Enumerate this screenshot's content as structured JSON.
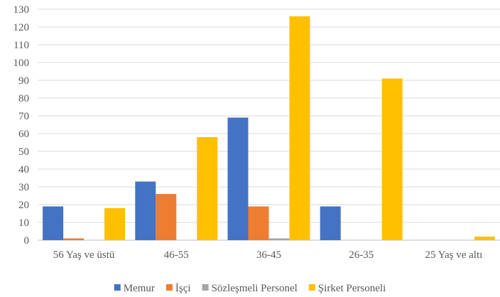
{
  "chart_data": {
    "type": "bar",
    "categories": [
      "56 Yaş ve üstü",
      "46-55",
      "36-45",
      "26-35",
      "25 Yaş ve altı"
    ],
    "series": [
      {
        "name": "Memur",
        "color": "#4472C4",
        "values": [
          19,
          33,
          69,
          19,
          0
        ]
      },
      {
        "name": "İşçi",
        "color": "#ED7D31",
        "values": [
          1,
          26,
          19,
          0,
          0
        ]
      },
      {
        "name": "Sözleşmeli Personel",
        "color": "#A5A5A5",
        "values": [
          0,
          0,
          1,
          0,
          0
        ]
      },
      {
        "name": "Şirket Personeli",
        "color": "#FFC000",
        "values": [
          18,
          58,
          126,
          91,
          2
        ]
      }
    ],
    "ylim": [
      0,
      130
    ],
    "yticks": [
      0,
      10,
      20,
      30,
      40,
      50,
      60,
      70,
      80,
      90,
      100,
      110,
      120,
      130
    ],
    "grid": true,
    "legend_position": "bottom"
  }
}
